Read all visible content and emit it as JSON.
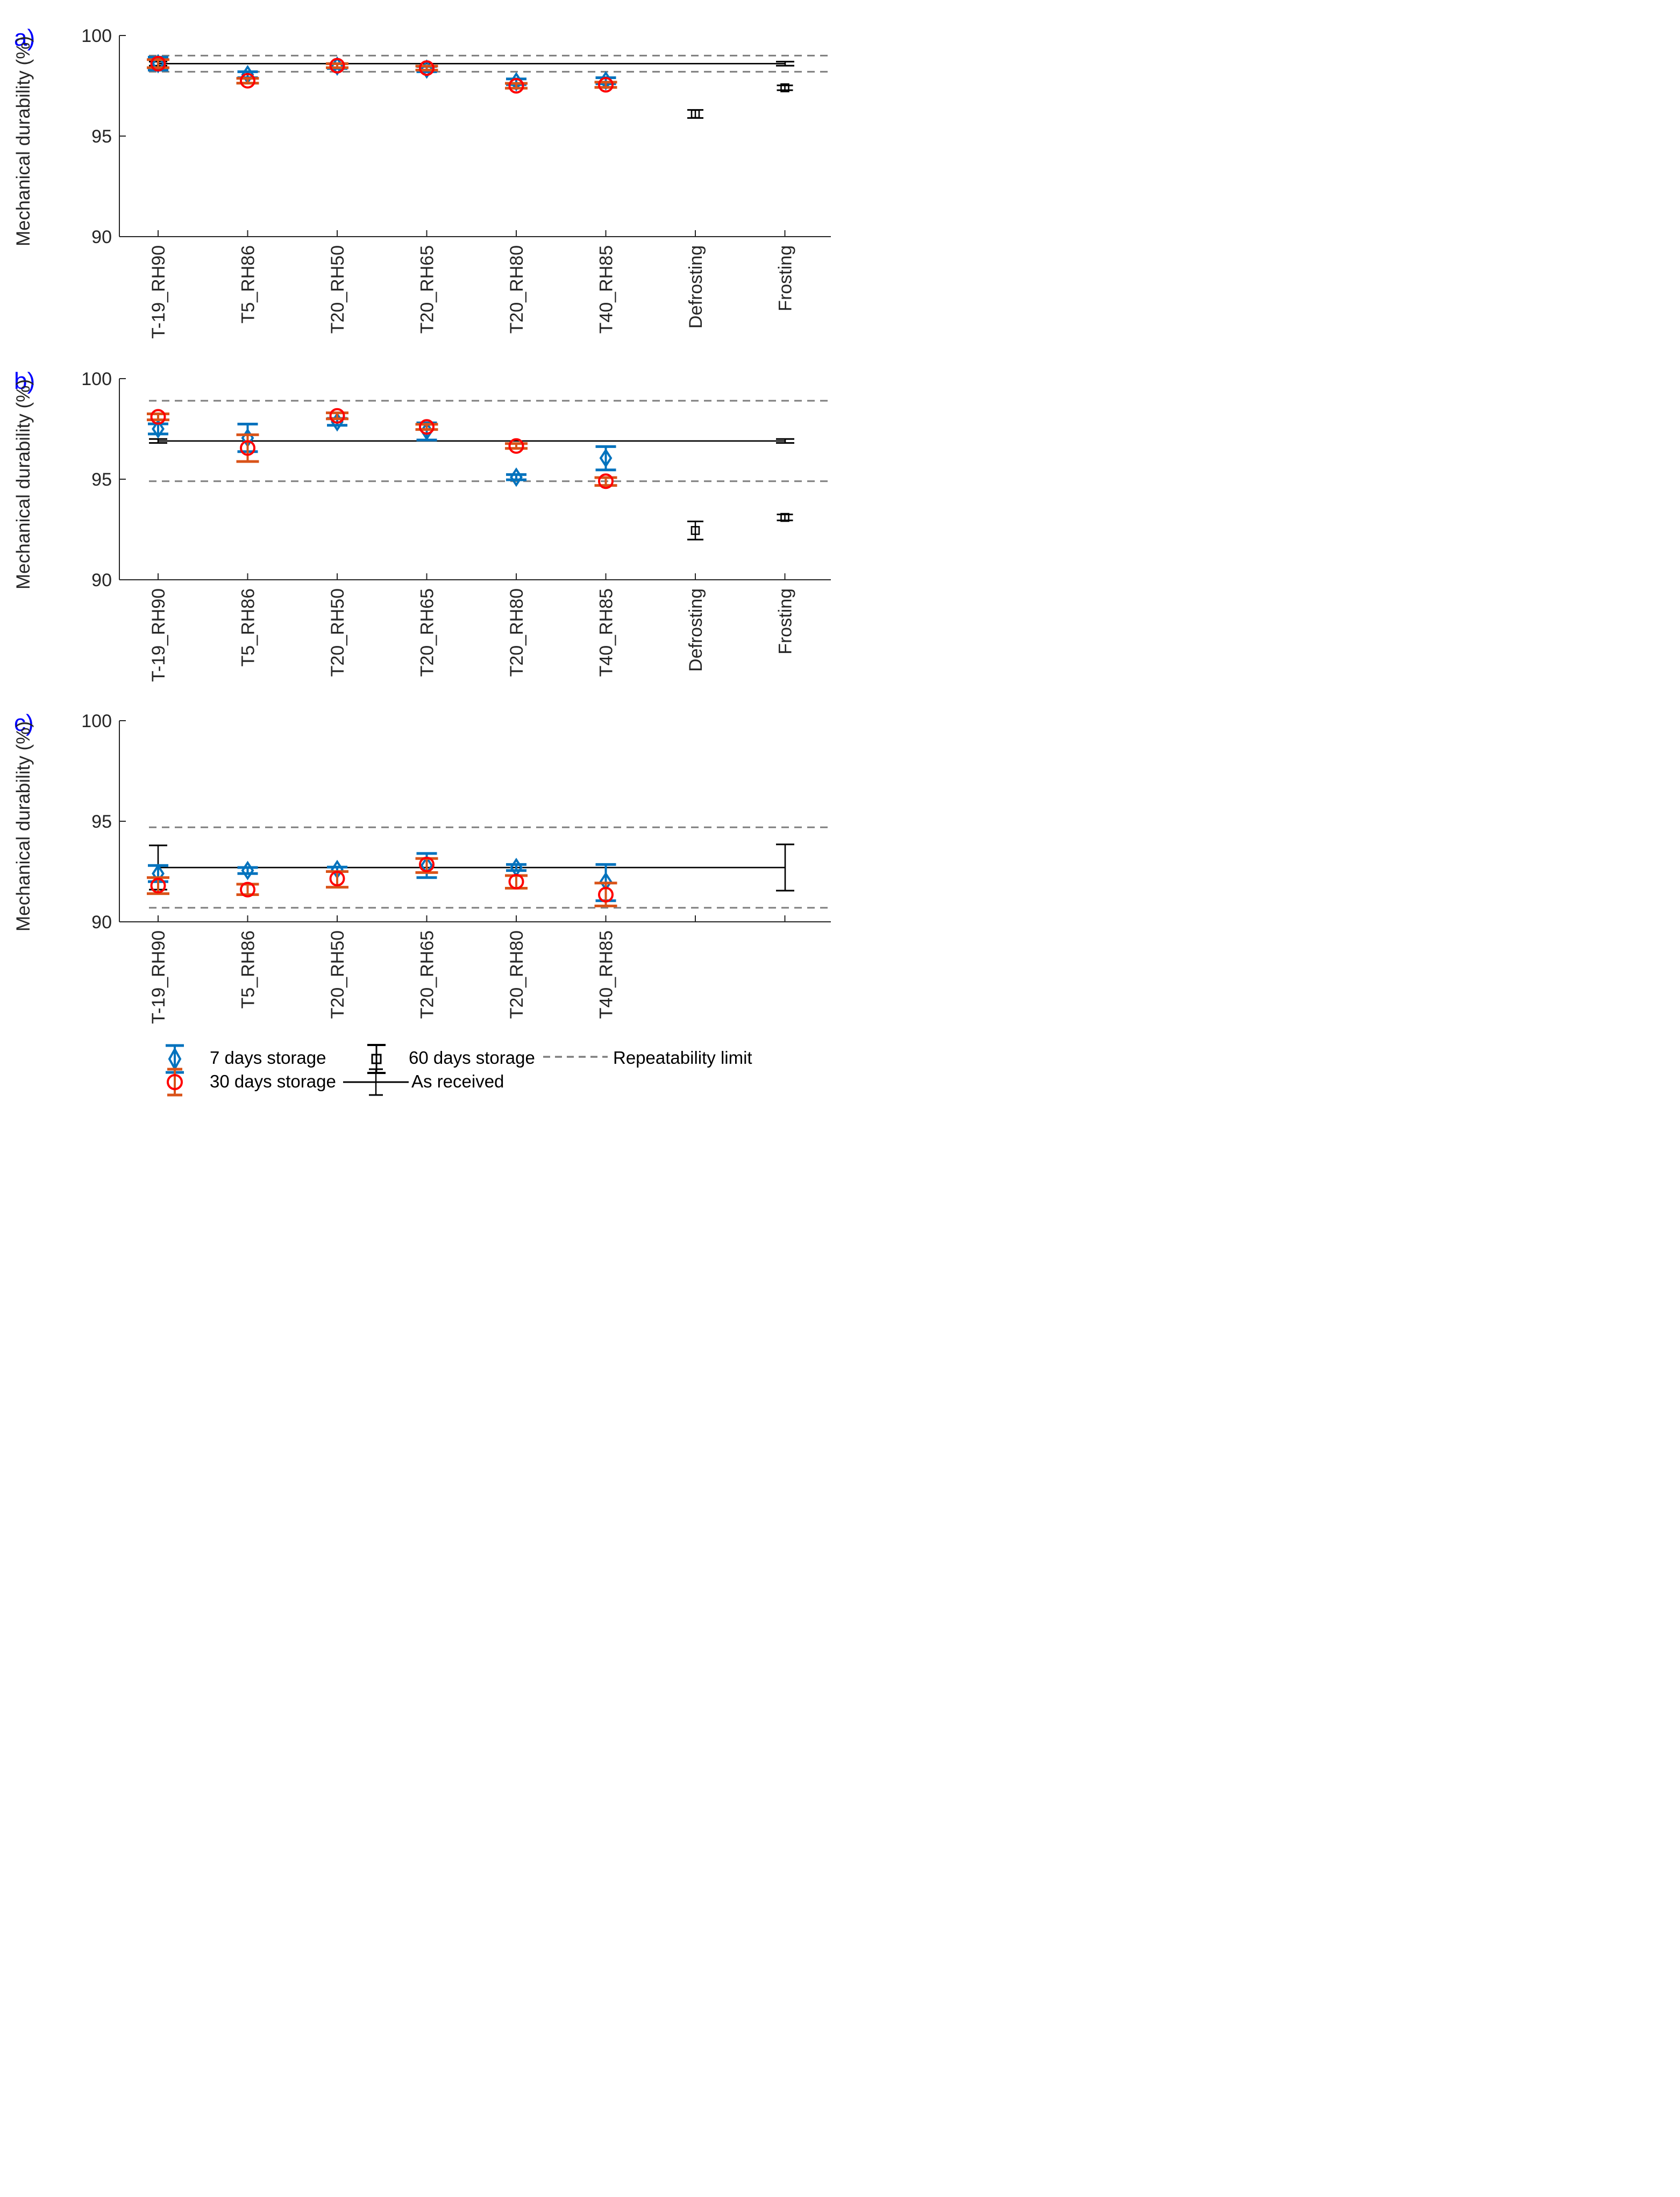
{
  "figure": {
    "ylabel": "Mechanical durability (%)",
    "panel_letters": {
      "a": "a)",
      "b": "b)",
      "c": "c)"
    }
  },
  "colors": {
    "blue_marker": "#0072BD",
    "red_marker": "#FF0000",
    "orange_errorbar": "#D95319",
    "black": "#000000",
    "dashed_gray": "#7F7F7F",
    "axis": "#262626",
    "panel_letter_blue": "#0000FF"
  },
  "legend": {
    "items": [
      {
        "icon": "diamond-errorbar-icon",
        "label": "7 days storage"
      },
      {
        "icon": "square-errorbar-icon",
        "label": "60 days storage"
      },
      {
        "icon": "dashed-line-icon",
        "label": "Repeatability limit"
      },
      {
        "icon": "circle-errorbar-icon",
        "label": "30 days storage"
      },
      {
        "icon": "line-errorbar-icon",
        "label": "As received"
      }
    ]
  },
  "chart_data": [
    {
      "id": "a",
      "label": "a)",
      "type": "scatter",
      "ylabel": "Mechanical durability (%)",
      "ylim": [
        90,
        100
      ],
      "yticks": [
        90,
        95,
        100
      ],
      "xtick_count": 8,
      "categories": [
        "T-19_RH90",
        "T5_RH86",
        "T20_RH50",
        "T20_RH65",
        "T20_RH80",
        "T40_RH85",
        "Defrosting",
        "Frosting"
      ],
      "as_received": {
        "value": 98.6,
        "err_left": 0.1,
        "err_right": 0.1
      },
      "repeatability": {
        "upper": 99.0,
        "lower": 98.2
      },
      "series": [
        {
          "name": "7 days storage",
          "marker": "diamond",
          "marker_color": "#0072BD",
          "bar_color": "#0072BD",
          "values": [
            {
              "c": "T-19_RH90",
              "y": 98.6,
              "lo": 98.28,
              "hi": 98.92
            },
            {
              "c": "T5_RH86",
              "y": 98.05,
              "lo": 97.9,
              "hi": 98.2
            },
            {
              "c": "T20_RH50",
              "y": 98.48,
              "lo": 98.36,
              "hi": 98.6
            },
            {
              "c": "T20_RH65",
              "y": 98.33,
              "lo": 98.2,
              "hi": 98.46
            },
            {
              "c": "T20_RH80",
              "y": 97.7,
              "lo": 97.56,
              "hi": 97.84
            },
            {
              "c": "T40_RH85",
              "y": 97.75,
              "lo": 97.6,
              "hi": 97.9
            }
          ]
        },
        {
          "name": "30 days storage",
          "marker": "circle",
          "marker_color": "#FF0000",
          "bar_color": "#D95319",
          "values": [
            {
              "c": "T-19_RH90",
              "y": 98.6,
              "lo": 98.4,
              "hi": 98.8
            },
            {
              "c": "T5_RH86",
              "y": 97.75,
              "lo": 97.63,
              "hi": 97.87
            },
            {
              "c": "T20_RH50",
              "y": 98.5,
              "lo": 98.4,
              "hi": 98.6
            },
            {
              "c": "T20_RH65",
              "y": 98.38,
              "lo": 98.28,
              "hi": 98.48
            },
            {
              "c": "T20_RH80",
              "y": 97.5,
              "lo": 97.38,
              "hi": 97.62
            },
            {
              "c": "T40_RH85",
              "y": 97.55,
              "lo": 97.42,
              "hi": 97.68
            }
          ]
        },
        {
          "name": "60 days storage",
          "marker": "square",
          "marker_color": "#000000",
          "bar_color": "#000000",
          "values": [
            {
              "c": "Defrosting",
              "y": 96.1,
              "lo": 95.9,
              "hi": 96.3
            },
            {
              "c": "Frosting",
              "y": 97.4,
              "lo": 97.28,
              "hi": 97.52
            }
          ]
        }
      ]
    },
    {
      "id": "b",
      "label": "b)",
      "type": "scatter",
      "ylabel": "Mechanical durability (%)",
      "ylim": [
        90,
        100
      ],
      "yticks": [
        90,
        95,
        100
      ],
      "xtick_count": 8,
      "categories": [
        "T-19_RH90",
        "T5_RH86",
        "T20_RH50",
        "T20_RH65",
        "T20_RH80",
        "T40_RH85",
        "Defrosting",
        "Frosting"
      ],
      "as_received": {
        "value": 96.9,
        "err_left": 0.1,
        "err_right": 0.1
      },
      "repeatability": {
        "upper": 98.9,
        "lower": 94.9
      },
      "series": [
        {
          "name": "7 days storage",
          "marker": "diamond",
          "marker_color": "#0072BD",
          "bar_color": "#0072BD",
          "values": [
            {
              "c": "T-19_RH90",
              "y": 97.5,
              "lo": 97.25,
              "hi": 97.75
            },
            {
              "c": "T5_RH86",
              "y": 97.05,
              "lo": 96.37,
              "hi": 97.74
            },
            {
              "c": "T20_RH50",
              "y": 97.85,
              "lo": 97.68,
              "hi": 98.02
            },
            {
              "c": "T20_RH65",
              "y": 97.4,
              "lo": 96.95,
              "hi": 97.8
            },
            {
              "c": "T20_RH80",
              "y": 95.1,
              "lo": 94.97,
              "hi": 95.23
            },
            {
              "c": "T40_RH85",
              "y": 96.05,
              "lo": 95.46,
              "hi": 96.62
            }
          ]
        },
        {
          "name": "30 days storage",
          "marker": "circle",
          "marker_color": "#FF0000",
          "bar_color": "#D95319",
          "values": [
            {
              "c": "T-19_RH90",
              "y": 98.1,
              "lo": 97.95,
              "hi": 98.25
            },
            {
              "c": "T5_RH86",
              "y": 96.55,
              "lo": 95.88,
              "hi": 97.21
            },
            {
              "c": "T20_RH50",
              "y": 98.15,
              "lo": 98.0,
              "hi": 98.3
            },
            {
              "c": "T20_RH65",
              "y": 97.6,
              "lo": 97.47,
              "hi": 97.73
            },
            {
              "c": "T20_RH80",
              "y": 96.65,
              "lo": 96.53,
              "hi": 96.77
            },
            {
              "c": "T40_RH85",
              "y": 94.9,
              "lo": 94.69,
              "hi": 95.08
            }
          ]
        },
        {
          "name": "60 days storage",
          "marker": "square",
          "marker_color": "#000000",
          "bar_color": "#000000",
          "values": [
            {
              "c": "Defrosting",
              "y": 92.45,
              "lo": 92.0,
              "hi": 92.9
            },
            {
              "c": "Frosting",
              "y": 93.1,
              "lo": 92.95,
              "hi": 93.25
            }
          ]
        }
      ]
    },
    {
      "id": "c",
      "label": "c)",
      "type": "scatter",
      "ylabel": "Mechanical durability (%)",
      "ylim": [
        90,
        100
      ],
      "yticks": [
        90,
        95,
        100
      ],
      "xtick_count": 8,
      "categories": [
        "T-19_RH90",
        "T5_RH86",
        "T20_RH50",
        "T20_RH65",
        "T20_RH80",
        "T40_RH85"
      ],
      "as_received": {
        "value": 92.7,
        "err_left": 1.1,
        "err_right": 1.15
      },
      "repeatability": {
        "upper": 94.7,
        "lower": 90.7
      },
      "series": [
        {
          "name": "7 days storage",
          "marker": "diamond",
          "marker_color": "#0072BD",
          "bar_color": "#0072BD",
          "values": [
            {
              "c": "T-19_RH90",
              "y": 92.4,
              "lo": 92.0,
              "hi": 92.8
            },
            {
              "c": "T5_RH86",
              "y": 92.55,
              "lo": 92.4,
              "hi": 92.7
            },
            {
              "c": "T20_RH50",
              "y": 92.6,
              "lo": 92.5,
              "hi": 92.72
            },
            {
              "c": "T20_RH65",
              "y": 92.8,
              "lo": 92.2,
              "hi": 93.4
            },
            {
              "c": "T20_RH80",
              "y": 92.7,
              "lo": 92.55,
              "hi": 92.85
            },
            {
              "c": "T40_RH85",
              "y": 92.0,
              "lo": 91.05,
              "hi": 92.85
            }
          ]
        },
        {
          "name": "30 days storage",
          "marker": "circle",
          "marker_color": "#FF0000",
          "bar_color": "#D95319",
          "values": [
            {
              "c": "T-19_RH90",
              "y": 91.8,
              "lo": 91.4,
              "hi": 92.2
            },
            {
              "c": "T5_RH86",
              "y": 91.6,
              "lo": 91.35,
              "hi": 91.87
            },
            {
              "c": "T20_RH50",
              "y": 92.15,
              "lo": 91.72,
              "hi": 92.5
            },
            {
              "c": "T20_RH65",
              "y": 92.85,
              "lo": 92.45,
              "hi": 93.15
            },
            {
              "c": "T20_RH80",
              "y": 92.0,
              "lo": 91.67,
              "hi": 92.3
            },
            {
              "c": "T40_RH85",
              "y": 91.35,
              "lo": 90.79,
              "hi": 91.93
            }
          ]
        }
      ]
    }
  ]
}
